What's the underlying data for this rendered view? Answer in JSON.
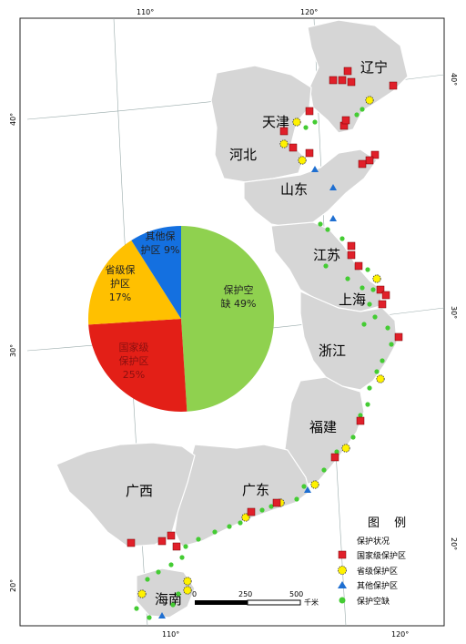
{
  "map": {
    "provinces": [
      "辽宁",
      "天津",
      "河北",
      "山东",
      "江苏",
      "上海",
      "浙江",
      "福建",
      "广东",
      "广西",
      "海南"
    ],
    "lon_ticks": [
      "110°",
      "120°"
    ],
    "lat_ticks": [
      "40°",
      "30°",
      "20°"
    ],
    "scale": {
      "labels": [
        "0",
        "250",
        "500"
      ],
      "unit": "千米"
    }
  },
  "legend": {
    "title": "图 例",
    "subtitle": "保护状况",
    "items": [
      {
        "label": "国家级保护区",
        "symbol": "red-square",
        "color": "#e0202a"
      },
      {
        "label": "省级保护区",
        "symbol": "yellow-circle",
        "color": "#fff200"
      },
      {
        "label": "其他保护区",
        "symbol": "blue-triangle",
        "color": "#1f6fd1"
      },
      {
        "label": "保护空缺",
        "symbol": "green-circle",
        "color": "#44cc33"
      }
    ]
  },
  "chart_data": {
    "type": "pie",
    "slices": [
      {
        "label": "保护空缺",
        "text_lines": [
          "保护空",
          "缺 49%"
        ],
        "value": 49,
        "color": "#8fd14f"
      },
      {
        "label": "国家级保护区",
        "text_lines": [
          "国家级",
          "保护区",
          "25%"
        ],
        "value": 25,
        "color": "#e31f17"
      },
      {
        "label": "省级保护区",
        "text_lines": [
          "省级保",
          "护区",
          "17%"
        ],
        "value": 17,
        "color": "#ffc000"
      },
      {
        "label": "其他保护区",
        "text_lines": [
          "其他保",
          "护区 9%"
        ],
        "value": 9,
        "color": "#1470e0"
      }
    ]
  }
}
